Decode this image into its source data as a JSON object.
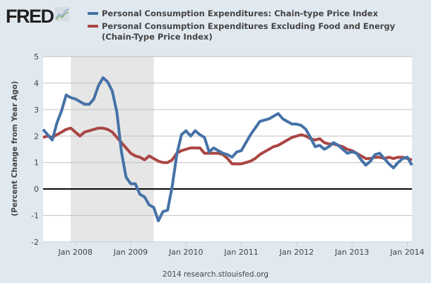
{
  "logo": {
    "text": "FRED",
    "icon": "chart-line-icon"
  },
  "footer": "2014 research.stlouisfed.org",
  "colors": {
    "series1": "#4572a7",
    "series2": "#aa4643",
    "recession": "#e6e6e6",
    "background": "#e1e9f0"
  },
  "chart_data": {
    "type": "line",
    "title": "",
    "xlabel": "",
    "ylabel": "(Percent Change from Year Ago)",
    "ylim": [
      -2,
      5
    ],
    "yticks": [
      "-2",
      "-1",
      "0",
      "1",
      "2",
      "3",
      "4",
      "5"
    ],
    "xtick_labels": [
      "Jan 2008",
      "Jan 2009",
      "Jan 2010",
      "Jan 2011",
      "Jan 2012",
      "Jan 2013",
      "Jan 2014"
    ],
    "x_start": "2007-06",
    "x_end": "2014-02",
    "frequency": "monthly",
    "grid": true,
    "legend": "top",
    "recession_shading": {
      "start": "2007-12",
      "end": "2009-06"
    },
    "series": [
      {
        "name": "Personal Consumption Expenditures: Chain-type Price Index",
        "color": "#4572a7",
        "values": [
          2.25,
          2.05,
          1.85,
          2.5,
          2.95,
          3.55,
          3.45,
          3.4,
          3.3,
          3.2,
          3.2,
          3.4,
          3.9,
          4.2,
          4.05,
          3.7,
          2.9,
          1.4,
          0.45,
          0.2,
          0.2,
          -0.2,
          -0.3,
          -0.6,
          -0.7,
          -1.2,
          -0.85,
          -0.8,
          0.1,
          1.3,
          2.05,
          2.2,
          2.0,
          2.2,
          2.05,
          1.95,
          1.4,
          1.55,
          1.45,
          1.35,
          1.3,
          1.2,
          1.4,
          1.45,
          1.75,
          2.05,
          2.3,
          2.55,
          2.6,
          2.65,
          2.75,
          2.85,
          2.65,
          2.55,
          2.45,
          2.45,
          2.4,
          2.25,
          1.95,
          1.6,
          1.65,
          1.5,
          1.6,
          1.75,
          1.65,
          1.5,
          1.35,
          1.4,
          1.35,
          1.1,
          0.9,
          1.05,
          1.3,
          1.35,
          1.15,
          0.95,
          0.8,
          1.0,
          1.15,
          1.2,
          0.9
        ]
      },
      {
        "name": "Personal Consumption Expenditures Excluding Food and Energy (Chain-Type Price Index)",
        "color": "#aa4643",
        "values": [
          1.95,
          2.0,
          1.95,
          2.05,
          2.15,
          2.25,
          2.3,
          2.15,
          2.0,
          2.15,
          2.2,
          2.25,
          2.3,
          2.3,
          2.25,
          2.15,
          1.95,
          1.75,
          1.55,
          1.35,
          1.25,
          1.2,
          1.1,
          1.25,
          1.15,
          1.05,
          1.0,
          1.0,
          1.1,
          1.35,
          1.45,
          1.5,
          1.55,
          1.55,
          1.55,
          1.35,
          1.35,
          1.35,
          1.35,
          1.3,
          1.15,
          0.95,
          0.95,
          0.95,
          1.0,
          1.05,
          1.15,
          1.3,
          1.4,
          1.5,
          1.6,
          1.65,
          1.75,
          1.85,
          1.95,
          2.0,
          2.05,
          2.0,
          1.9,
          1.85,
          1.9,
          1.75,
          1.7,
          1.7,
          1.65,
          1.6,
          1.5,
          1.45,
          1.35,
          1.25,
          1.15,
          1.15,
          1.2,
          1.2,
          1.15,
          1.2,
          1.15,
          1.2,
          1.2,
          1.15,
          1.1
        ]
      }
    ]
  }
}
